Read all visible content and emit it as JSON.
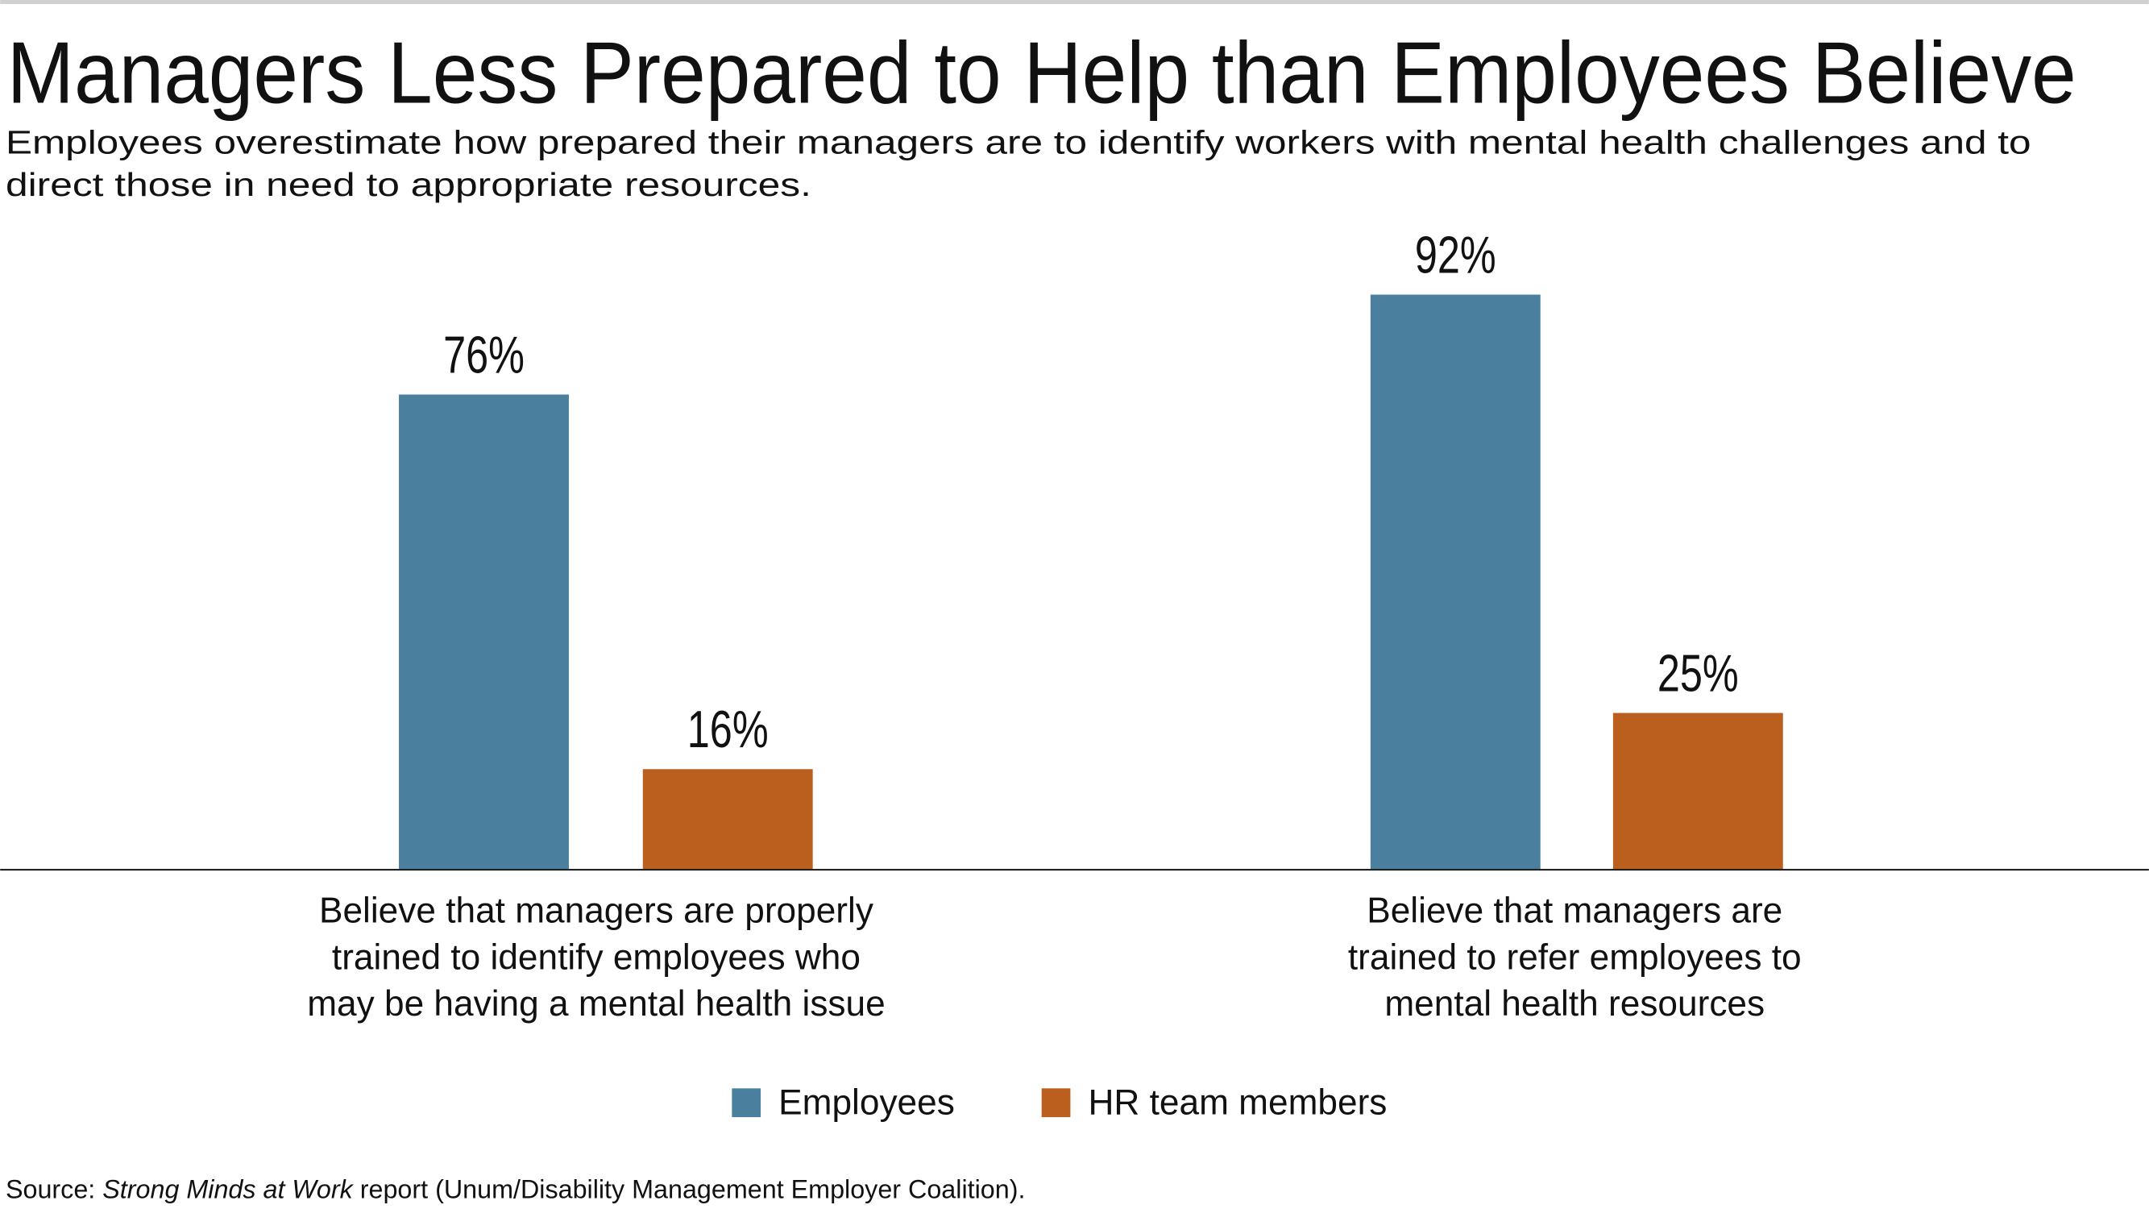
{
  "chart_data": {
    "type": "bar",
    "title": "Managers Less Prepared to Help than Employees Believe",
    "subtitle_lines": [
      "Employees overestimate how prepared their managers are to identify workers with mental health challenges and to",
      "direct those in need to appropriate resources."
    ],
    "categories": [
      [
        "Believe that managers are properly",
        "trained to identify employees who",
        "may be having a mental health issue"
      ],
      [
        "Believe that managers are",
        "trained to refer employees to",
        "mental health resources"
      ]
    ],
    "series": [
      {
        "name": "Employees",
        "color": "#4a7f9e",
        "values": [
          76,
          92
        ],
        "labels": [
          "76%",
          "92%"
        ]
      },
      {
        "name": "HR team members",
        "color": "#bb5f1e",
        "values": [
          16,
          25
        ],
        "labels": [
          "16%",
          "25%"
        ]
      }
    ],
    "ylim": [
      0,
      100
    ],
    "grid": false,
    "legend": "bottom-center",
    "source": {
      "prefix": "Source: ",
      "italic": "Strong Minds at Work",
      "suffix": " report (Unum/Disability Management Employer Coalition)."
    }
  }
}
